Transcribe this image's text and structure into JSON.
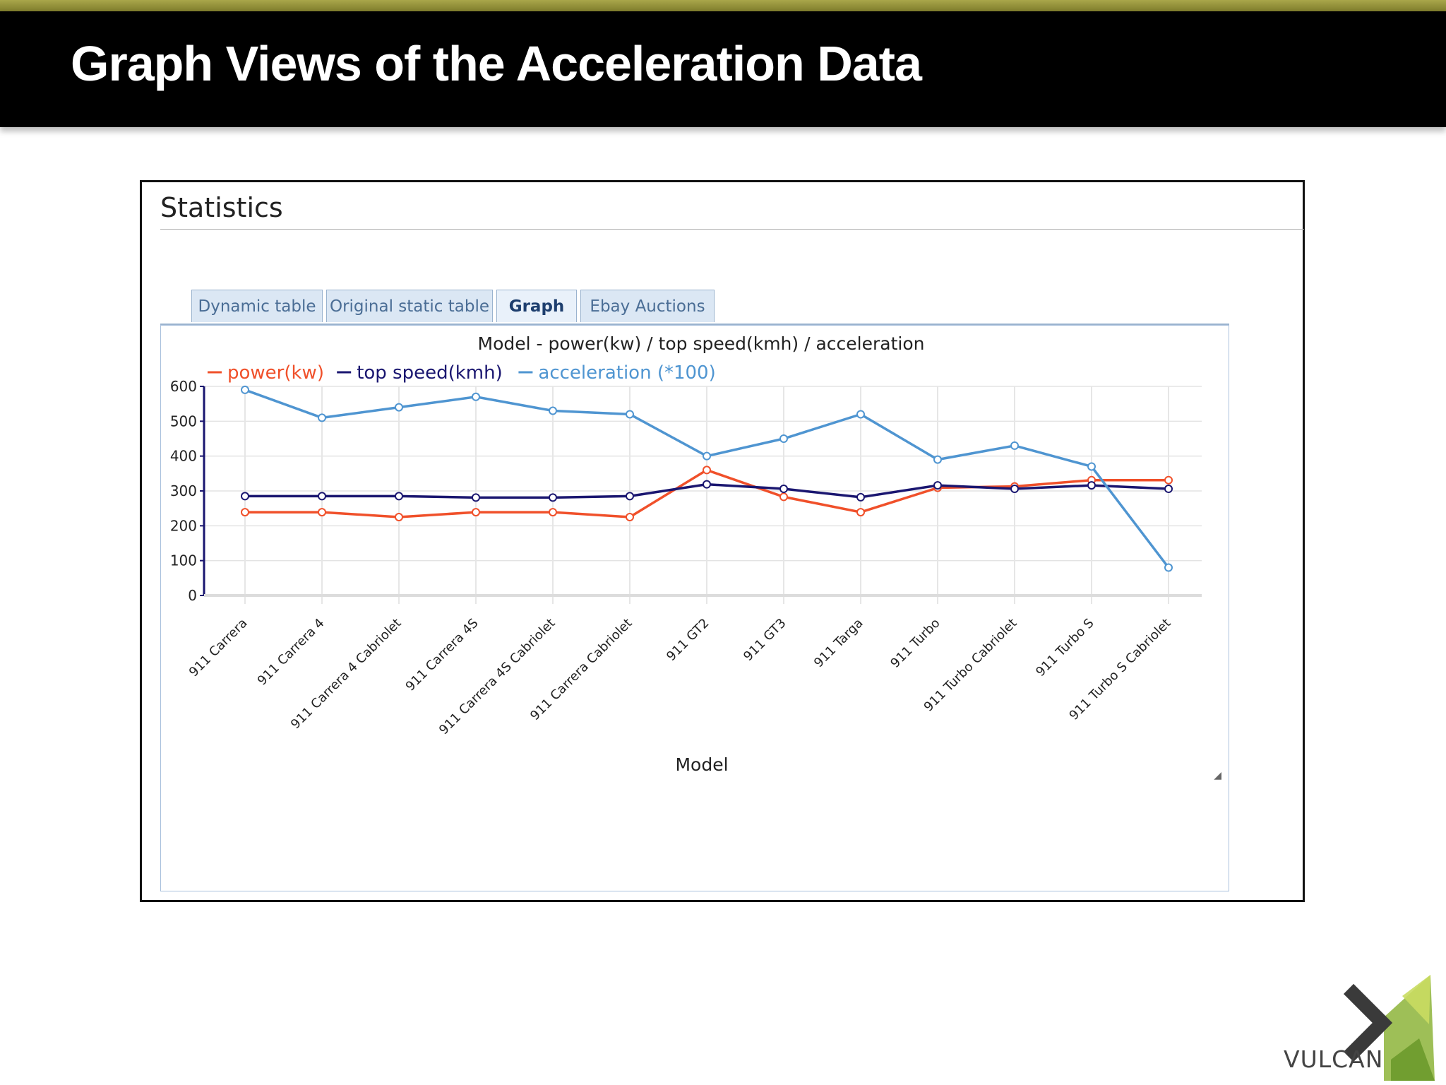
{
  "slide": {
    "title": "Graph Views of the Acceleration Data"
  },
  "panel": {
    "title": "Statistics",
    "tabs": [
      {
        "label": "Dynamic table"
      },
      {
        "label": "Original static table"
      },
      {
        "label": "Graph",
        "active": true
      },
      {
        "label": "Ebay Auctions"
      }
    ]
  },
  "logo": {
    "text": "VULCAN",
    "icon": "chevron-icon"
  },
  "colors": {
    "power": "#f0502a",
    "top_speed": "#1a1670",
    "acceleration": "#4f95d1"
  },
  "chart_data": {
    "type": "line",
    "title": "Model - power(kw) / top speed(kmh) / acceleration",
    "xlabel": "Model",
    "ylabel": "",
    "ylim": [
      0,
      600
    ],
    "yticks": [
      0,
      100,
      200,
      300,
      400,
      500,
      600
    ],
    "grid": true,
    "legend": "top-left",
    "categories": [
      "911 Carrera",
      "911 Carrera 4",
      "911 Carrera 4 Cabriolet",
      "911 Carrera 4S",
      "911 Carrera 4S Cabriolet",
      "911 Carrera Cabriolet",
      "911 GT2",
      "911 GT3",
      "911 Targa",
      "911 Turbo",
      "911 Turbo Cabriolet",
      "911 Turbo S",
      "911 Turbo S Cabriolet"
    ],
    "series": [
      {
        "name": "power(kw)",
        "values": [
          239,
          239,
          225,
          239,
          239,
          225,
          360,
          283,
          239,
          309,
          313,
          331,
          331
        ]
      },
      {
        "name": "top speed(kmh)",
        "values": [
          285,
          285,
          285,
          281,
          281,
          285,
          319,
          306,
          282,
          316,
          306,
          316,
          306
        ]
      },
      {
        "name": "acceleration (*100)",
        "values": [
          590,
          510,
          540,
          570,
          530,
          520,
          400,
          450,
          520,
          390,
          430,
          370,
          80
        ]
      }
    ]
  }
}
